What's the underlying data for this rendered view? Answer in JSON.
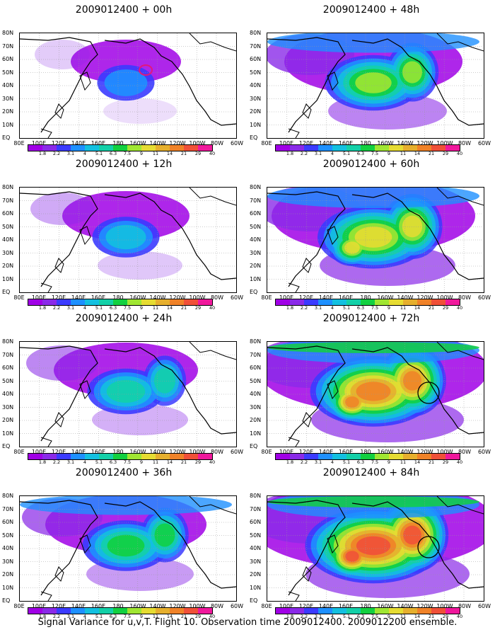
{
  "caption": "Signal Variance for u,v,T. Flight 10. Observation time 2009012400. 2009012200 ensemble.",
  "lat_labels": [
    "80N",
    "70N",
    "60N",
    "50N",
    "40N",
    "30N",
    "20N",
    "10N",
    "EQ"
  ],
  "lon_labels": [
    "80E",
    "100E",
    "120E",
    "140E",
    "160E",
    "180",
    "160W",
    "140W",
    "120W",
    "100W",
    "80W",
    "60W"
  ],
  "colorbar": {
    "levels": [
      "1.8",
      "2.2",
      "3.1",
      "4",
      "5.1",
      "6.3",
      "7.5",
      "9",
      "11",
      "14",
      "21",
      "29",
      "40"
    ],
    "colors": [
      "#a000e6",
      "#8a2ae8",
      "#3b3bff",
      "#1e90ff",
      "#13c0e0",
      "#13d0a8",
      "#12d040",
      "#a0e632",
      "#e6dc32",
      "#e6af2d",
      "#f08228",
      "#f05038",
      "#f0189c"
    ]
  },
  "panels": [
    {
      "title": "2009012400 + 00h",
      "intensity": 0.15,
      "circle": false
    },
    {
      "title": "2009012400 + 48h",
      "intensity": 0.55,
      "circle": false
    },
    {
      "title": "2009012400 + 12h",
      "intensity": 0.25,
      "circle": false
    },
    {
      "title": "2009012400 + 60h",
      "intensity": 0.7,
      "circle": false
    },
    {
      "title": "2009012400 + 24h",
      "intensity": 0.35,
      "circle": false
    },
    {
      "title": "2009012400 + 72h",
      "intensity": 0.85,
      "circle": true
    },
    {
      "title": "2009012400 + 36h",
      "intensity": 0.45,
      "circle": false
    },
    {
      "title": "2009012400 + 84h",
      "intensity": 0.95,
      "circle": true
    }
  ]
}
